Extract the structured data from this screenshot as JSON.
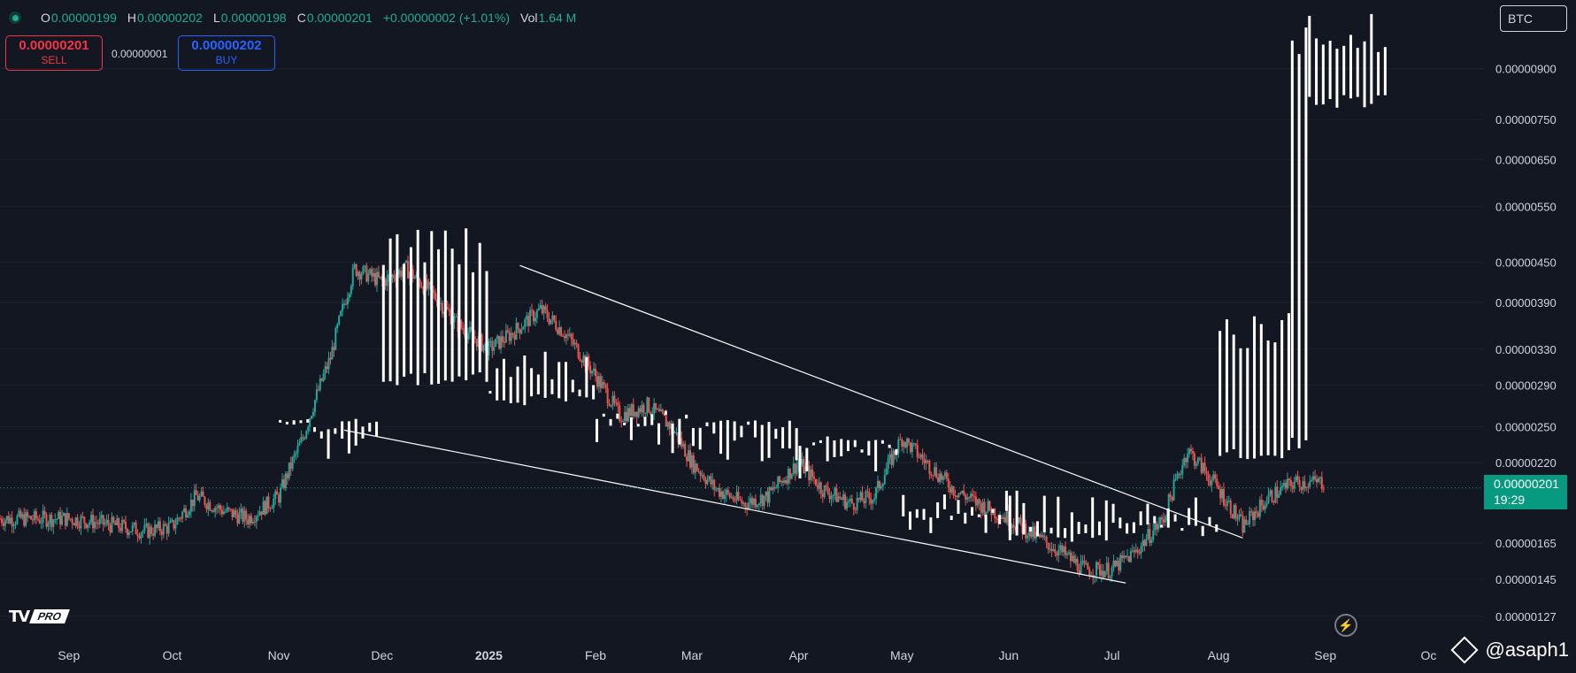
{
  "ohlc": {
    "open_label": "O",
    "open": "0.00000199",
    "high_label": "H",
    "high": "0.00000202",
    "low_label": "L",
    "low": "0.00000198",
    "close_label": "C",
    "close": "0.00000201",
    "change": "+0.00000002 (+1.01%)",
    "vol_label": "Vol",
    "vol": "1.64 M"
  },
  "trade": {
    "sell_price": "0.00000201",
    "sell_label": "SELL",
    "spread": "0.00000001",
    "buy_price": "0.00000202",
    "buy_label": "BUY"
  },
  "currency": "BTC",
  "last_price": {
    "value": "0.00000201",
    "countdown": "19:29"
  },
  "logo": {
    "mark": "TV",
    "badge": "PRO"
  },
  "watermark": "@asaph1",
  "colors": {
    "background": "#131722",
    "up": "#26a69a",
    "down": "#ef5350",
    "overlay": "#ffffff",
    "price_tag": "#089981",
    "text": "#d1d4dc"
  },
  "chart_data": {
    "type": "candlestick",
    "y_axis_ticks": [
      "0.00000900",
      "0.00000750",
      "0.00000650",
      "0.00000550",
      "0.00000450",
      "0.00000390",
      "0.00000330",
      "0.00000290",
      "0.00000250",
      "0.00000220",
      "0.00000165",
      "0.00000145",
      "0.00000127"
    ],
    "x_axis_ticks": [
      "Sep",
      "Oct",
      "Nov",
      "Dec",
      "2025",
      "Feb",
      "Mar",
      "Apr",
      "May",
      "Jun",
      "Jul",
      "Aug",
      "Sep",
      "Oc"
    ],
    "x_axis_bold": [
      "2025"
    ],
    "ylim": [
      1.18e-06,
      1.15e-05
    ],
    "y_scale": "log",
    "candle_series": [
      {
        "period": "2024-09",
        "values": [
          1.8e-06,
          1.78e-06,
          1.75e-06,
          1.72e-06
        ]
      },
      {
        "period": "2024-10",
        "values": [
          1.75e-06,
          1.95e-06,
          1.85e-06,
          1.8e-06
        ]
      },
      {
        "period": "2024-11",
        "values": [
          1.95e-06,
          2.4e-06,
          3.2e-06,
          4.4e-06
        ]
      },
      {
        "period": "2024-12",
        "values": [
          4.2e-06,
          4.4e-06,
          4e-06,
          3.6e-06
        ]
      },
      {
        "period": "2025-01",
        "values": [
          3.3e-06,
          3.5e-06,
          3.8e-06,
          3.5e-06
        ]
      },
      {
        "period": "2025-02",
        "values": [
          3e-06,
          2.6e-06,
          2.7e-06,
          2.5e-06
        ]
      },
      {
        "period": "2025-03",
        "values": [
          2.2e-06,
          2e-06,
          1.9e-06,
          1.95e-06
        ]
      },
      {
        "period": "2025-04",
        "values": [
          2.2e-06,
          2e-06,
          1.9e-06,
          1.95e-06
        ]
      },
      {
        "period": "2025-05",
        "values": [
          2.4e-06,
          2.2e-06,
          2e-06,
          1.9e-06
        ]
      },
      {
        "period": "2025-06",
        "values": [
          1.8e-06,
          1.7e-06,
          1.6e-06,
          1.5e-06
        ]
      },
      {
        "period": "2025-07",
        "values": [
          1.5e-06,
          1.6e-06,
          1.8e-06,
          2.3e-06
        ]
      },
      {
        "period": "2025-08",
        "values": [
          2e-06,
          1.75e-06,
          1.95e-06,
          2.05e-06
        ]
      }
    ],
    "overlay_bars": [
      {
        "period": "2024-11",
        "high": 2.6e-06,
        "low": 2.45e-06
      },
      {
        "period": "2024-12",
        "high": 5.1e-06,
        "low": 2.9e-06
      },
      {
        "period": "2025-01",
        "high": 3.3e-06,
        "low": 2.7e-06
      },
      {
        "period": "2025-02",
        "high": 2.65e-06,
        "low": 2.5e-06
      },
      {
        "period": "2025-03",
        "high": 2.55e-06,
        "low": 2.45e-06
      },
      {
        "period": "2025-04",
        "high": 2.4e-06,
        "low": 2.3e-06
      },
      {
        "period": "2025-05",
        "high": 2e-06,
        "low": 1.8e-06
      },
      {
        "period": "2025-06",
        "high": 2e-06,
        "low": 1.65e-06
      },
      {
        "period": "2025-07",
        "high": 1.95e-06,
        "low": 1.7e-06
      },
      {
        "period": "2025-08",
        "high": 3.8e-06,
        "low": 2.2e-06
      },
      {
        "period": "2025-08-late",
        "high": 1.1e-05,
        "low": 2.3e-06
      },
      {
        "period": "2025-09",
        "high": 1.12e-05,
        "low": 7.8e-06
      }
    ],
    "trendlines": [
      {
        "from": [
          "2025-01-10",
          4.45e-06
        ],
        "to": [
          "2025-08-08",
          1.68e-06
        ]
      },
      {
        "from": [
          "2024-11-20",
          2.47e-06
        ],
        "to": [
          "2025-07-05",
          1.43e-06
        ]
      }
    ]
  }
}
